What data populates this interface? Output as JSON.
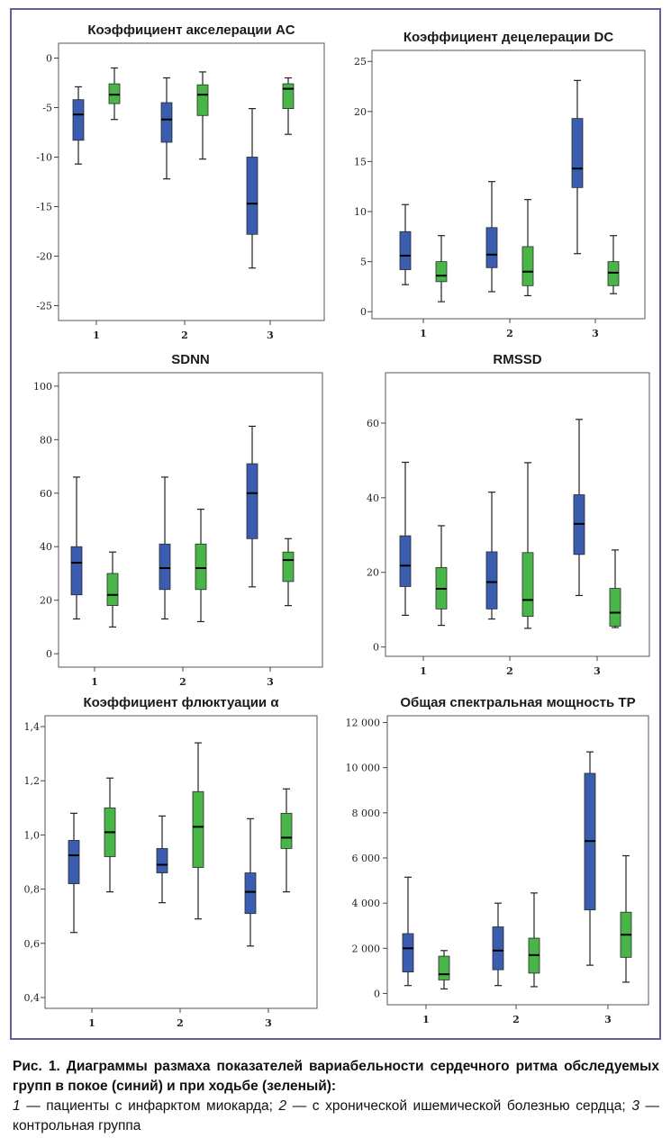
{
  "chart_data": [
    {
      "type": "boxplot",
      "title": "Коэффициент акселерации AC",
      "categories": [
        "1",
        "2",
        "3"
      ],
      "yticks": [
        "0",
        "-5",
        "-10",
        "-15",
        "-20",
        "-25"
      ],
      "ylim": [
        -26.5,
        1.5
      ],
      "series": [
        {
          "color": "#3a5db0",
          "boxes": [
            {
              "min": -10.7,
              "q1": -8.3,
              "median": -5.7,
              "q3": -4.2,
              "max": -2.9
            },
            {
              "min": -12.2,
              "q1": -8.5,
              "median": -6.2,
              "q3": -4.5,
              "max": -2.0
            },
            {
              "min": -21.2,
              "q1": -17.8,
              "median": -14.7,
              "q3": -10.0,
              "max": -5.1
            }
          ]
        },
        {
          "color": "#49b548",
          "boxes": [
            {
              "min": -6.2,
              "q1": -4.6,
              "median": -3.7,
              "q3": -2.6,
              "max": -1.0
            },
            {
              "min": -10.2,
              "q1": -5.8,
              "median": -3.7,
              "q3": -2.7,
              "max": -1.4
            },
            {
              "min": -7.7,
              "q1": -5.1,
              "median": -3.1,
              "q3": -2.6,
              "max": -2.0
            }
          ]
        }
      ]
    },
    {
      "type": "boxplot",
      "title": "Коэффициент децелерации DC",
      "categories": [
        "1",
        "2",
        "3"
      ],
      "yticks": [
        "25",
        "20",
        "15",
        "10",
        "5",
        "0"
      ],
      "ylim": [
        -0.7,
        26.1
      ],
      "series": [
        {
          "color": "#3a5db0",
          "boxes": [
            {
              "min": 2.7,
              "q1": 4.2,
              "median": 5.6,
              "q3": 8.0,
              "max": 10.7
            },
            {
              "min": 2.0,
              "q1": 4.4,
              "median": 5.7,
              "q3": 8.4,
              "max": 13.0
            },
            {
              "min": 5.8,
              "q1": 12.4,
              "median": 14.3,
              "q3": 19.3,
              "max": 23.1
            }
          ]
        },
        {
          "color": "#49b548",
          "boxes": [
            {
              "min": 1.0,
              "q1": 3.0,
              "median": 3.6,
              "q3": 5.0,
              "max": 7.6
            },
            {
              "min": 1.6,
              "q1": 2.6,
              "median": 4.0,
              "q3": 6.5,
              "max": 11.2
            },
            {
              "min": 1.8,
              "q1": 2.6,
              "median": 3.9,
              "q3": 5.0,
              "max": 7.6
            }
          ]
        }
      ]
    },
    {
      "type": "boxplot",
      "title": "SDNN",
      "categories": [
        "1",
        "2",
        "3"
      ],
      "yticks": [
        "100",
        "80",
        "60",
        "40",
        "20",
        "0"
      ],
      "ylim": [
        -5,
        105
      ],
      "series": [
        {
          "color": "#3a5db0",
          "boxes": [
            {
              "min": 13,
              "q1": 22,
              "median": 34,
              "q3": 40,
              "max": 66
            },
            {
              "min": 13,
              "q1": 24,
              "median": 32,
              "q3": 41,
              "max": 66
            },
            {
              "min": 25,
              "q1": 43,
              "median": 60,
              "q3": 71,
              "max": 85
            }
          ]
        },
        {
          "color": "#49b548",
          "boxes": [
            {
              "min": 10,
              "q1": 18,
              "median": 22,
              "q3": 30,
              "max": 38
            },
            {
              "min": 12,
              "q1": 24,
              "median": 32,
              "q3": 41,
              "max": 54
            },
            {
              "min": 18,
              "q1": 27,
              "median": 35,
              "q3": 38,
              "max": 43
            }
          ]
        }
      ]
    },
    {
      "type": "boxplot",
      "title": "RMSSD",
      "categories": [
        "1",
        "2",
        "3"
      ],
      "yticks": [
        "60",
        "40",
        "20",
        "0"
      ],
      "ylim": [
        -2.5,
        73.5
      ],
      "series": [
        {
          "color": "#3a5db0",
          "boxes": [
            {
              "min": 8.5,
              "q1": 16.2,
              "median": 21.8,
              "q3": 29.8,
              "max": 49.5
            },
            {
              "min": 7.5,
              "q1": 10.2,
              "median": 17.4,
              "q3": 25.5,
              "max": 41.5
            },
            {
              "min": 13.8,
              "q1": 24.8,
              "median": 33.0,
              "q3": 40.8,
              "max": 61.0
            }
          ]
        },
        {
          "color": "#49b548",
          "boxes": [
            {
              "min": 5.8,
              "q1": 10.2,
              "median": 15.6,
              "q3": 21.3,
              "max": 32.5
            },
            {
              "min": 5.0,
              "q1": 8.2,
              "median": 12.6,
              "q3": 25.3,
              "max": 49.4
            },
            {
              "min": 5.2,
              "q1": 5.6,
              "median": 9.2,
              "q3": 15.7,
              "max": 26.0
            }
          ]
        }
      ]
    },
    {
      "type": "boxplot",
      "title": "Коэффициент флюктуации α",
      "categories": [
        "1",
        "2",
        "3"
      ],
      "yticks": [
        "1,4",
        "1,2",
        "1,0",
        "0,8",
        "0,6",
        "0,4"
      ],
      "ylim": [
        0.36,
        1.44
      ],
      "series": [
        {
          "color": "#3a5db0",
          "boxes": [
            {
              "min": 0.64,
              "q1": 0.82,
              "median": 0.925,
              "q3": 0.98,
              "max": 1.08
            },
            {
              "min": 0.75,
              "q1": 0.86,
              "median": 0.89,
              "q3": 0.95,
              "max": 1.07
            },
            {
              "min": 0.59,
              "q1": 0.71,
              "median": 0.79,
              "q3": 0.86,
              "max": 1.06
            }
          ]
        },
        {
          "color": "#49b548",
          "boxes": [
            {
              "min": 0.79,
              "q1": 0.92,
              "median": 1.01,
              "q3": 1.1,
              "max": 1.21
            },
            {
              "min": 0.69,
              "q1": 0.88,
              "median": 1.03,
              "q3": 1.16,
              "max": 1.34
            },
            {
              "min": 0.79,
              "q1": 0.95,
              "median": 0.99,
              "q3": 1.08,
              "max": 1.17
            }
          ]
        }
      ]
    },
    {
      "type": "boxplot",
      "title": "Общая спектральная мощность TP",
      "categories": [
        "1",
        "2",
        "3"
      ],
      "yticks": [
        "12 000",
        "10 000",
        "8 000",
        "6 000",
        "4 000",
        "2 000",
        "0"
      ],
      "ylim": [
        -500,
        12300
      ],
      "series": [
        {
          "color": "#3a5db0",
          "boxes": [
            {
              "min": 350,
              "q1": 950,
              "median": 2000,
              "q3": 2650,
              "max": 5150
            },
            {
              "min": 350,
              "q1": 1050,
              "median": 1900,
              "q3": 2950,
              "max": 4000
            },
            {
              "min": 1250,
              "q1": 3700,
              "median": 6750,
              "q3": 9750,
              "max": 10700
            }
          ]
        },
        {
          "color": "#49b548",
          "boxes": [
            {
              "min": 200,
              "q1": 600,
              "median": 850,
              "q3": 1650,
              "max": 1900
            },
            {
              "min": 300,
              "q1": 900,
              "median": 1700,
              "q3": 2450,
              "max": 4450
            },
            {
              "min": 500,
              "q1": 1600,
              "median": 2600,
              "q3": 3600,
              "max": 6100
            }
          ]
        }
      ]
    }
  ],
  "caption": {
    "lead": "Рис. 1. Диаграммы размаха показателей вариабельности сердечного ритма обследуемых групп в покое (синий) и при ходьбе (зеленый):",
    "n1": "1",
    "t1": " — пациенты с инфарктом миокарда; ",
    "n2": "2",
    "t2": " — с хронической ишемической болезнью сердца; ",
    "n3": "3",
    "t3": " — контрольная группа"
  }
}
